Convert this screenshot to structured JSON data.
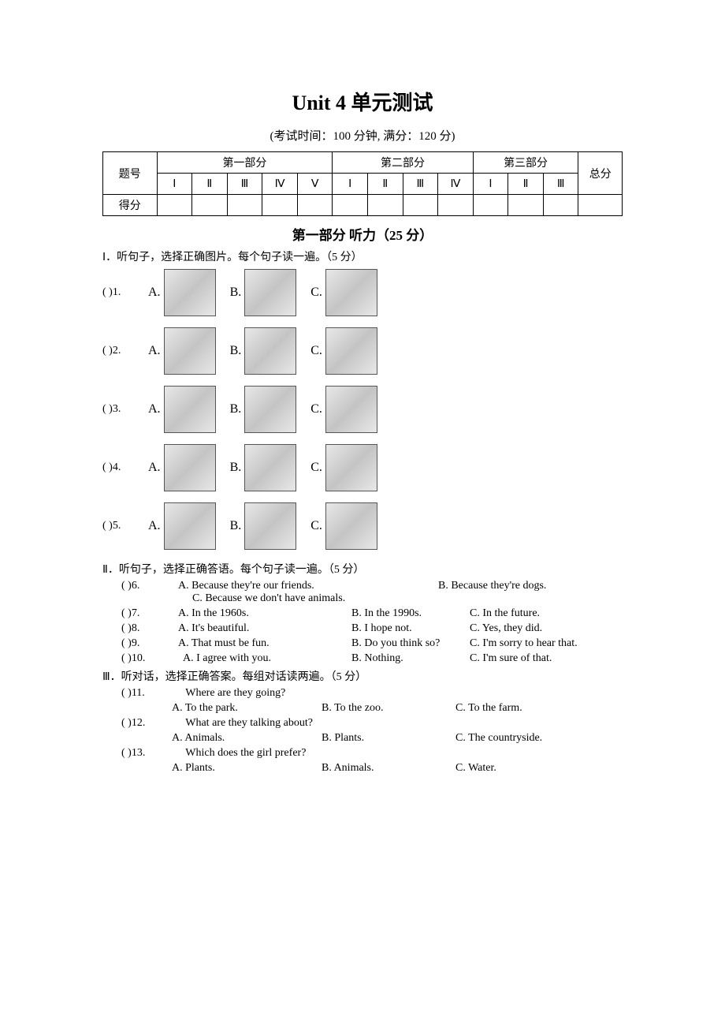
{
  "title": "Unit 4   单元测试",
  "subtitle": "(考试时间：100 分钟,  满分：120 分)",
  "table": {
    "row1_label": "题号",
    "part1": "第一部分",
    "part2": "第二部分",
    "part3": "第三部分",
    "total": "总分",
    "cols_p1": [
      "Ⅰ",
      "Ⅱ",
      "Ⅲ",
      "Ⅳ",
      "Ⅴ"
    ],
    "cols_p2": [
      "Ⅰ",
      "Ⅱ",
      "Ⅲ",
      "Ⅳ"
    ],
    "cols_p3": [
      "Ⅰ",
      "Ⅱ",
      "Ⅲ"
    ],
    "row2_label": "得分"
  },
  "section1_title": "第一部分   听力（25 分）",
  "s1_instr": "Ⅰ．听句子，选择正确图片。每个句子读一遍。（5 分）",
  "q_image": [
    {
      "paren": "(        )1.",
      "labels": [
        "A.",
        "B.",
        "C."
      ],
      "tags": [
        "mushrooms-image",
        "fox-image",
        "bear-image"
      ]
    },
    {
      "paren": "(        )2.",
      "labels": [
        "A.",
        "B.",
        "C."
      ],
      "tags": [
        "sun-sky-image",
        "computer-image",
        "airplane-image"
      ]
    },
    {
      "paren": "(        )3.",
      "labels": [
        "A.",
        "B.",
        "C."
      ],
      "tags": [
        "countryside-image",
        "city-buildings-image",
        "factory-pollution-image"
      ]
    },
    {
      "paren": "(        )4.",
      "labels": [
        "A.",
        "B.",
        "C."
      ],
      "tags": [
        "pisa-tower-image",
        "eiffel-tower-image",
        "lake-scene-image"
      ]
    },
    {
      "paren": "(        )5.",
      "labels": [
        "A.",
        "B.",
        "C."
      ],
      "tags": [
        "person-desk-image",
        "rain-leaves-image",
        "horses-image"
      ]
    }
  ],
  "s2_instr": "Ⅱ．听句子，选择正确答语。每个句子读一遍。（5 分）",
  "q6": {
    "paren": "(        )6.",
    "a": "A. Because they're our friends.",
    "b": "B. Because they're dogs.",
    "c": "C. Because we don't have animals."
  },
  "q7": {
    "paren": "(        )7.",
    "a": "A. In the 1960s.",
    "b": "B. In the 1990s.",
    "c": "C. In the future."
  },
  "q8": {
    "paren": "(        )8.",
    "a": "A. It's beautiful.",
    "b": "B. I hope not.",
    "c": "C. Yes, they did."
  },
  "q9": {
    "paren": "(        )9.",
    "a": "A. That must be fun.",
    "b": "B. Do you think so?",
    "c": "C. I'm sorry to hear that."
  },
  "q10": {
    "paren": "(        )10.",
    "a": "A. I agree with you.",
    "b": "B. Nothing.",
    "c": "C. I'm sure of that."
  },
  "s3_instr": "Ⅲ．听对话，选择正确答案。每组对话读两遍。（5 分）",
  "q11": {
    "paren": "(        )11.",
    "q": "Where are they going?",
    "a": "A. To the park.",
    "b": "B. To the zoo.",
    "c": "C. To the farm."
  },
  "q12": {
    "paren": "(        )12.",
    "q": "What are they talking about?",
    "a": "A. Animals.",
    "b": "B. Plants.",
    "c": "C. The countryside."
  },
  "q13": {
    "paren": "(        )13.",
    "q": "Which does the girl prefer?",
    "a": "A. Plants.",
    "b": "B. Animals.",
    "c": "C. Water."
  }
}
